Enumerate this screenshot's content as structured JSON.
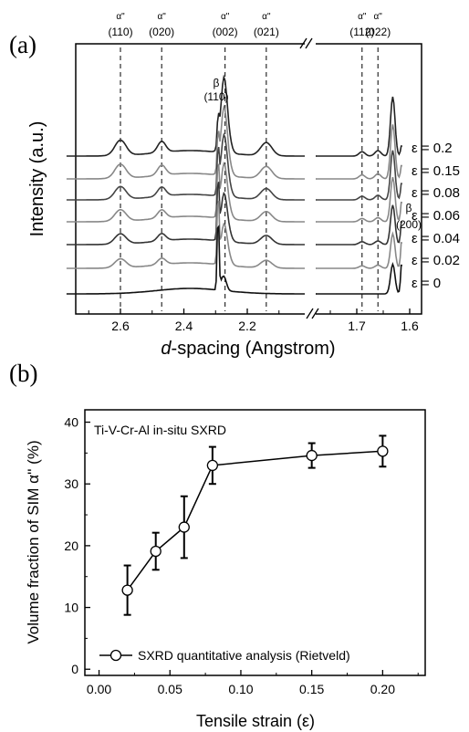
{
  "chart_data": [
    {
      "type": "line",
      "panel_label": "(a)",
      "xlabel_italic": "d",
      "xlabel_rest": "-spacing (Angstrom)",
      "ylabel": "Intensity (a.u.)",
      "x_ticks_left": [
        "2.6",
        "2.4",
        "2.2"
      ],
      "x_ticks_right": [
        "1.7",
        "1.6"
      ],
      "reflections": [
        {
          "phase": "α\"",
          "hkl": "(110)",
          "d": 2.6
        },
        {
          "phase": "α\"",
          "hkl": "(020)",
          "d": 2.47
        },
        {
          "phase": "α\"",
          "hkl": "(002)",
          "d": 2.27
        },
        {
          "phase": "α\"",
          "hkl": "(021)",
          "d": 2.14
        },
        {
          "phase": "α\"",
          "hkl": "(112)",
          "d": 1.69
        },
        {
          "phase": "α\"",
          "hkl": "(022)",
          "d": 1.66
        }
      ],
      "beta_peaks": [
        {
          "phase": "β",
          "hkl": "(110)",
          "d": 2.29
        },
        {
          "phase": "β",
          "hkl": "(200)",
          "d": 1.63
        }
      ],
      "series": [
        {
          "name": "ε = 0.2"
        },
        {
          "name": "ε = 0.15"
        },
        {
          "name": "ε = 0.08"
        },
        {
          "name": "ε = 0.06"
        },
        {
          "name": "ε = 0.04"
        },
        {
          "name": "ε = 0.02"
        },
        {
          "name": "ε = 0"
        }
      ]
    },
    {
      "type": "scatter",
      "panel_label": "(b)",
      "title": "Ti-V-Cr-Al in-situ SXRD",
      "xlabel": "Tensile strain (ε)",
      "ylabel": "Volume fraction of SIM α'' (%)",
      "xlim": [
        -0.01,
        0.23
      ],
      "ylim": [
        -1,
        42
      ],
      "x_ticks": [
        "0.00",
        "0.05",
        "0.10",
        "0.15",
        "0.20"
      ],
      "y_ticks": [
        "0",
        "10",
        "20",
        "30",
        "40"
      ],
      "legend": "bottom-right",
      "series": [
        {
          "name": "SXRD quantitative analysis (Rietveld)",
          "x": [
            0.02,
            0.04,
            0.06,
            0.08,
            0.15,
            0.2
          ],
          "y": [
            12.8,
            19.1,
            23.0,
            33.0,
            34.6,
            35.3
          ],
          "yerr": [
            4.0,
            3.0,
            5.0,
            3.0,
            2.0,
            2.5
          ]
        }
      ]
    }
  ]
}
